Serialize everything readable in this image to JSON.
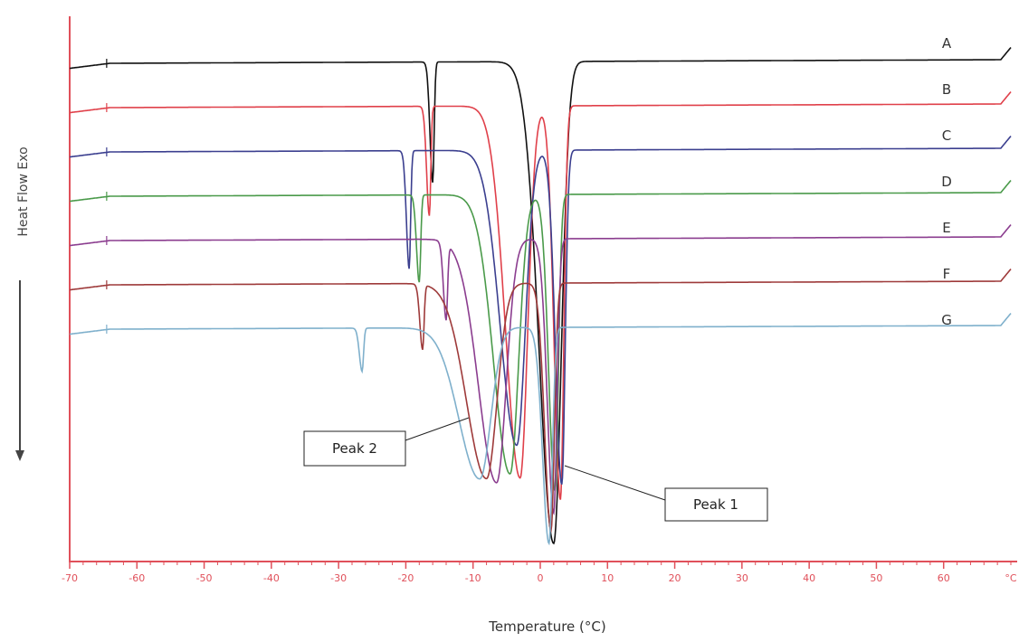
{
  "chart_data": {
    "type": "line",
    "xlabel": "Temperature (°C)",
    "ylabel": "Heat Flow Exo",
    "xlim": [
      -70,
      70
    ],
    "x_unit_tick_label": "°C",
    "x_ticks": [
      -70,
      -60,
      -50,
      -40,
      -30,
      -20,
      -10,
      0,
      10,
      20,
      30,
      40,
      50,
      60
    ],
    "x_tick_labels": [
      "-70",
      "-60",
      "-50",
      "-40",
      "-30",
      "-20",
      "-10",
      "0",
      "10",
      "20",
      "30",
      "40",
      "50",
      "60"
    ],
    "axis_color": "#e0505a",
    "grid": false,
    "series": [
      {
        "name": "A",
        "color": "#111111",
        "peaks": [
          {
            "x": -16,
            "depth": 0.25,
            "width": 0.3
          },
          {
            "x": 2.0,
            "depth": 1.0,
            "width": 1.6
          }
        ]
      },
      {
        "name": "B",
        "color": "#e0404a",
        "peaks": [
          {
            "x": -16.5,
            "depth": 0.25,
            "width": 0.3
          },
          {
            "x": -3.0,
            "depth": 0.85,
            "width": 1.6
          },
          {
            "x": 3.0,
            "depth": 0.9,
            "width": 0.7
          }
        ]
      },
      {
        "name": "C",
        "color": "#3b3f8f",
        "peaks": [
          {
            "x": -19.5,
            "depth": 0.3,
            "width": 0.3
          },
          {
            "x": -3.5,
            "depth": 0.75,
            "width": 1.8
          },
          {
            "x": 3.2,
            "depth": 0.85,
            "width": 0.7
          }
        ]
      },
      {
        "name": "D",
        "color": "#4a9a4a",
        "peaks": [
          {
            "x": -18,
            "depth": 0.25,
            "width": 0.3
          },
          {
            "x": -4.5,
            "depth": 0.8,
            "width": 1.8
          },
          {
            "x": 2.2,
            "depth": 0.85,
            "width": 0.7
          }
        ]
      },
      {
        "name": "E",
        "color": "#8b3d8f",
        "peaks": [
          {
            "x": -14,
            "depth": 0.25,
            "width": 0.3
          },
          {
            "x": -6.5,
            "depth": 0.8,
            "width": 2.0
          },
          {
            "x": 2.0,
            "depth": 0.9,
            "width": 0.7
          }
        ]
      },
      {
        "name": "F",
        "color": "#9e3a3a",
        "peaks": [
          {
            "x": -17.5,
            "depth": 0.25,
            "width": 0.3
          },
          {
            "x": -8.0,
            "depth": 0.75,
            "width": 2.2
          },
          {
            "x": 1.6,
            "depth": 0.95,
            "width": 0.7
          }
        ]
      },
      {
        "name": "G",
        "color": "#7fb0cc",
        "peaks": [
          {
            "x": -26.5,
            "depth": 0.2,
            "width": 0.3
          },
          {
            "x": -9.0,
            "depth": 0.7,
            "width": 2.3
          },
          {
            "x": 1.3,
            "depth": 1.0,
            "width": 0.7
          }
        ]
      }
    ],
    "annotations": [
      {
        "text": "Peak 2",
        "points_to_x": -10.5
      },
      {
        "text": "Peak 1",
        "points_to_x": 2.0
      }
    ]
  }
}
